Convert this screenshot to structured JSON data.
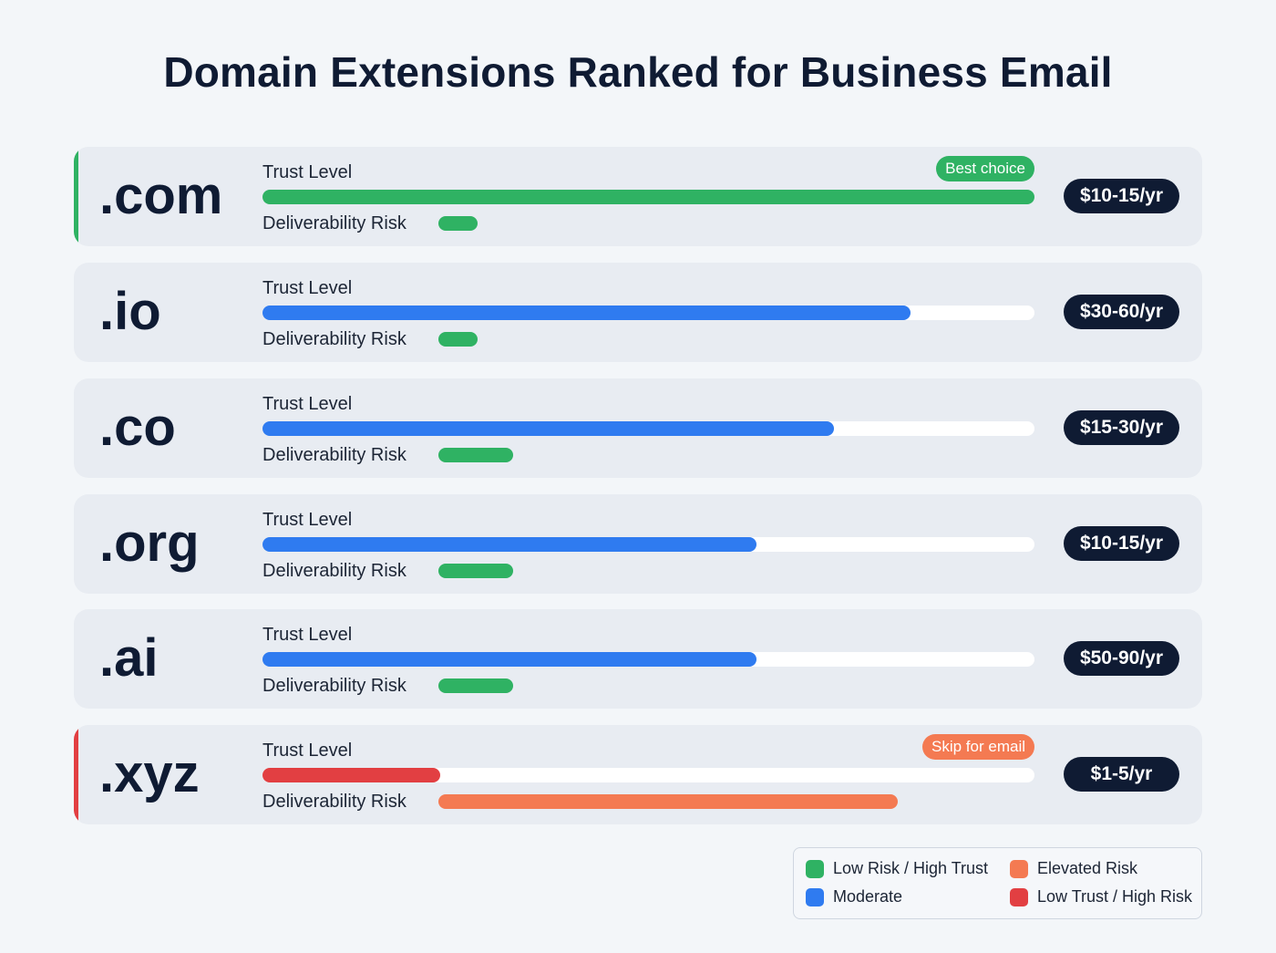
{
  "title": "Domain Extensions Ranked for Business Email",
  "colors": {
    "green": "#2fb263",
    "blue": "#2f7bf0",
    "orange": "#f47a52",
    "red": "#e23f42",
    "dark": "#0f1b33"
  },
  "chart_data": {
    "type": "bar",
    "title": "Domain Extensions Ranked for Business Email",
    "trust_label": "Trust Level",
    "risk_label": "Deliverability Risk",
    "scale": [
      0,
      100
    ],
    "rows": [
      {
        "ext": ".com",
        "trust": 100,
        "trust_color": "green",
        "risk": 6.5,
        "risk_color": "green",
        "price": "$10-15/yr",
        "badge": "Best choice",
        "badge_color": "green",
        "accent": "green"
      },
      {
        "ext": ".io",
        "trust": 84,
        "trust_color": "blue",
        "risk": 6.5,
        "risk_color": "green",
        "price": "$30-60/yr"
      },
      {
        "ext": ".co",
        "trust": 74,
        "trust_color": "blue",
        "risk": 12.5,
        "risk_color": "green",
        "price": "$15-30/yr"
      },
      {
        "ext": ".org",
        "trust": 64,
        "trust_color": "blue",
        "risk": 12.5,
        "risk_color": "green",
        "price": "$10-15/yr"
      },
      {
        "ext": ".ai",
        "trust": 64,
        "trust_color": "blue",
        "risk": 12.5,
        "risk_color": "green",
        "price": "$50-90/yr"
      },
      {
        "ext": ".xyz",
        "trust": 23,
        "trust_color": "red",
        "risk": 77,
        "risk_color": "orange",
        "price": "$1-5/yr",
        "badge": "Skip for email",
        "badge_color": "orange",
        "accent": "red"
      }
    ],
    "legend": [
      {
        "label": "Low Risk / High Trust",
        "color": "green"
      },
      {
        "label": "Elevated Risk",
        "color": "orange"
      },
      {
        "label": "Moderate",
        "color": "blue"
      },
      {
        "label": "Low Trust / High Risk",
        "color": "red"
      }
    ],
    "legend_position": "bottom-right"
  }
}
